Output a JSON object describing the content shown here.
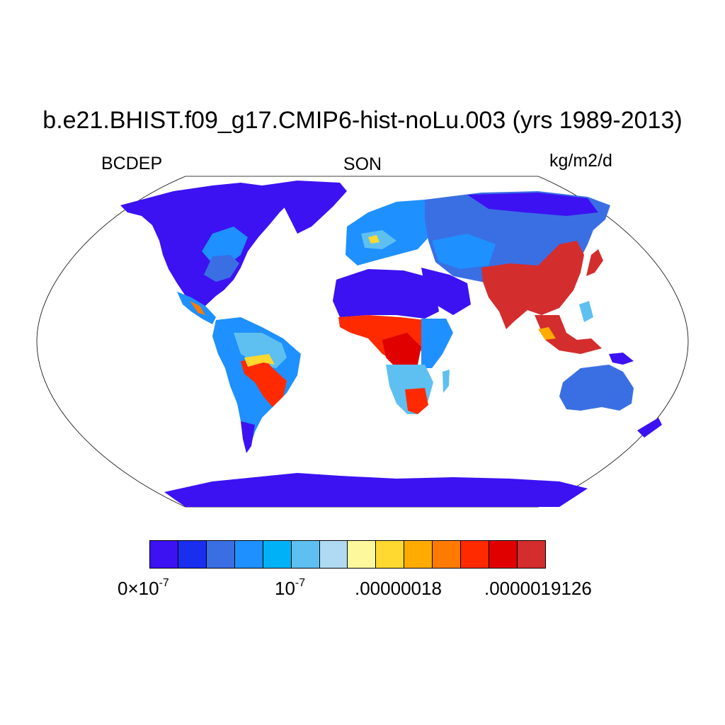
{
  "title": "b.e21.BHIST.f09_g17.CMIP6-hist-noLu.003 (yrs 1989-2013)",
  "left_label": "BCDEP",
  "center_label": "SON",
  "right_label": "kg/m2/d",
  "colorbar": {
    "colors": [
      "#3c12f2",
      "#1a2ef0",
      "#3a6fe4",
      "#1e90ff",
      "#00b2f5",
      "#5ec0f0",
      "#b0daf2",
      "#fdf89c",
      "#ffd830",
      "#ffab00",
      "#ff7a00",
      "#ff2a00",
      "#e00000",
      "#d42d2d"
    ],
    "labels": [
      {
        "base": "0×10",
        "exp": "-7"
      },
      {
        "base": "10",
        "exp": "-7"
      },
      {
        "base": ".00000018",
        "exp": ""
      },
      {
        "base": ".0000019126",
        "exp": ""
      }
    ]
  },
  "map": {
    "ocean_color": "#ffffff",
    "land_low_color": "#3c12f2"
  }
}
